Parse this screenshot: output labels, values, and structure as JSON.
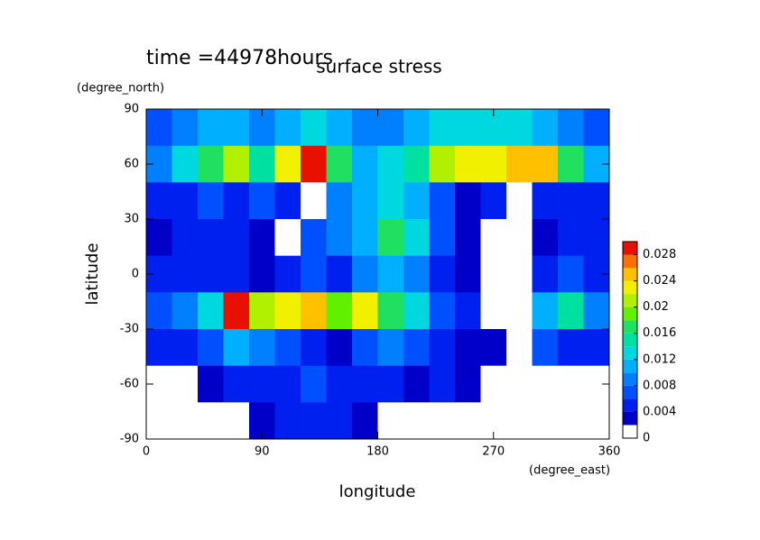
{
  "chart_data": {
    "type": "contour",
    "title": "surface stress",
    "annotation": "time =44978hours",
    "x_label": "longitude",
    "y_label": "latitude",
    "x_unit": "(degree_east)",
    "y_unit": "(degree_north)",
    "xlim": [
      0,
      360
    ],
    "ylim": [
      -90,
      90
    ],
    "xticks": [
      0,
      90,
      180,
      270,
      360
    ],
    "yticks": [
      -90,
      -60,
      -30,
      0,
      30,
      60,
      90
    ],
    "x": [
      10,
      30,
      50,
      70,
      90,
      110,
      130,
      150,
      170,
      190,
      210,
      230,
      250,
      270,
      290,
      310,
      330,
      350
    ],
    "y": [
      80,
      60,
      40,
      20,
      0,
      -20,
      -40,
      -60,
      -80
    ],
    "z": [
      [
        0.006,
        0.008,
        0.01,
        0.01,
        0.008,
        0.01,
        0.012,
        0.01,
        0.008,
        0.008,
        0.01,
        0.012,
        0.012,
        0.012,
        0.012,
        0.01,
        0.008,
        0.006
      ],
      [
        0.008,
        0.012,
        0.016,
        0.02,
        0.014,
        0.022,
        0.028,
        0.016,
        0.01,
        0.012,
        0.014,
        0.02,
        0.022,
        0.022,
        0.024,
        0.024,
        0.016,
        0.01
      ],
      [
        0.004,
        0.004,
        0.006,
        0.004,
        0.006,
        0.004,
        0,
        0.008,
        0.01,
        0.012,
        0.01,
        0.006,
        0.002,
        0.004,
        0,
        0.004,
        0.004,
        0.004
      ],
      [
        0.002,
        0.004,
        0.004,
        0.004,
        0.002,
        0,
        0.006,
        0.008,
        0.01,
        0.016,
        0.012,
        0.006,
        0.002,
        0,
        0,
        0.002,
        0.004,
        0.004
      ],
      [
        0.004,
        0.004,
        0.004,
        0.004,
        0.002,
        0.004,
        0.006,
        0.004,
        0.008,
        0.01,
        0.008,
        0.004,
        0.002,
        0,
        0,
        0.004,
        0.006,
        0.004
      ],
      [
        0.006,
        0.008,
        0.012,
        0.03,
        0.02,
        0.022,
        0.024,
        0.018,
        0.022,
        0.016,
        0.012,
        0.006,
        0.004,
        0,
        0,
        0.01,
        0.014,
        0.008
      ],
      [
        0.004,
        0.004,
        0.006,
        0.01,
        0.008,
        0.006,
        0.004,
        0.002,
        0.006,
        0.008,
        0.006,
        0.004,
        0.002,
        0.002,
        0,
        0.006,
        0.004,
        0.004
      ],
      [
        0,
        0,
        0.002,
        0.004,
        0.004,
        0.004,
        0.006,
        0.004,
        0.004,
        0.004,
        0.002,
        0.004,
        0.002,
        0,
        0,
        0,
        0,
        0
      ],
      [
        0,
        0,
        0,
        0,
        0.002,
        0.004,
        0.004,
        0.004,
        0.002,
        0,
        0,
        0,
        0,
        0,
        0,
        0,
        0,
        0
      ]
    ],
    "clim": [
      0,
      0.03
    ],
    "cticks": [
      0,
      0.004,
      0.008,
      0.012,
      0.016,
      0.02,
      0.024,
      0.028
    ],
    "levels": [
      0,
      0.002,
      0.004,
      0.006,
      0.008,
      0.01,
      0.012,
      0.014,
      0.016,
      0.018,
      0.02,
      0.022,
      0.024,
      0.026,
      0.028,
      0.03
    ],
    "colors": [
      "#ffffff",
      "#0000c8",
      "#0020f0",
      "#0050ff",
      "#0080ff",
      "#00b0ff",
      "#00d8e0",
      "#00e0a0",
      "#20e060",
      "#60f000",
      "#b0f000",
      "#f0f000",
      "#ffc000",
      "#ff7000",
      "#e81000"
    ]
  }
}
